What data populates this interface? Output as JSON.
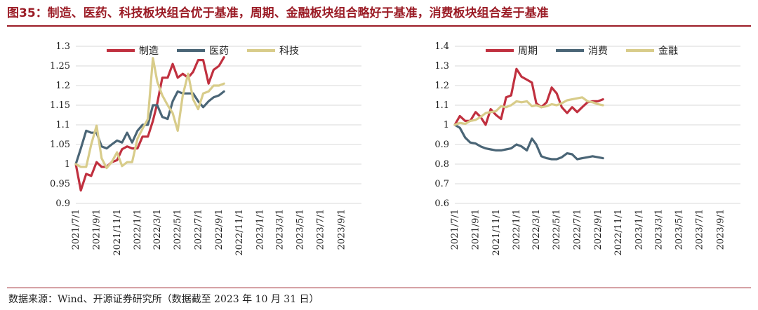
{
  "header": {
    "title": "图35：制造、医药、科技板块组合优于基准，周期、金融板块组合略好于基准，消费板块组合差于基准"
  },
  "footer": {
    "source": "数据来源：Wind、开源证券研究所（数据截至 2023 年 10 月 31 日）"
  },
  "chart_data": [
    {
      "type": "line",
      "title": "",
      "xlabel": "",
      "ylabel": "",
      "ylim": [
        0.9,
        1.3
      ],
      "yticks": [
        "1.3",
        "1.25",
        "1.2",
        "1.15",
        "1.1",
        "1.05",
        "1",
        "0.95",
        "0.9"
      ],
      "x_tick_labels": [
        "2021/7/1",
        "2021/9/1",
        "2021/11/1",
        "2022/1/1",
        "2022/3/1",
        "2022/5/1",
        "2022/7/1",
        "2022/9/1",
        "2022/11/1",
        "2023/1/1",
        "2023/3/1",
        "2023/5/1",
        "2023/7/1",
        "2023/9/1"
      ],
      "x_range": [
        "2021/7/1",
        "2023/10/31"
      ],
      "grid": true,
      "legend_position": "top",
      "series": [
        {
          "name": "制造",
          "color": "#c0303f",
          "points": [
            [
              "2021/7/1",
              1.0
            ],
            [
              "2021/7/16",
              0.933
            ],
            [
              "2021/8/1",
              0.975
            ],
            [
              "2021/8/16",
              0.97
            ],
            [
              "2021/9/1",
              1.005
            ],
            [
              "2021/9/16",
              0.993
            ],
            [
              "2021/10/1",
              0.993
            ],
            [
              "2021/10/16",
              1.005
            ],
            [
              "2021/11/1",
              1.01
            ],
            [
              "2021/11/16",
              1.038
            ],
            [
              "2021/12/1",
              1.045
            ],
            [
              "2021/12/16",
              1.04
            ],
            [
              "2022/1/1",
              1.04
            ],
            [
              "2022/1/16",
              1.07
            ],
            [
              "2022/2/1",
              1.07
            ],
            [
              "2022/2/16",
              1.11
            ],
            [
              "2022/3/1",
              1.155
            ],
            [
              "2022/3/16",
              1.22
            ],
            [
              "2022/4/1",
              1.22
            ],
            [
              "2022/4/16",
              1.255
            ],
            [
              "2022/5/1",
              1.22
            ],
            [
              "2022/5/16",
              1.23
            ],
            [
              "2022/6/1",
              1.22
            ],
            [
              "2022/6/16",
              1.235
            ],
            [
              "2022/7/1",
              1.265
            ],
            [
              "2022/7/16",
              1.265
            ],
            [
              "2022/8/1",
              1.205
            ],
            [
              "2022/8/16",
              1.24
            ],
            [
              "2022/9/1",
              1.25
            ],
            [
              "2022/9/16",
              1.272
            ]
          ]
        },
        {
          "name": "医药",
          "color": "#4a6576",
          "points": [
            [
              "2021/7/1",
              1.0
            ],
            [
              "2021/7/16",
              1.04
            ],
            [
              "2021/8/1",
              1.085
            ],
            [
              "2021/8/16",
              1.08
            ],
            [
              "2021/9/1",
              1.08
            ],
            [
              "2021/9/16",
              1.045
            ],
            [
              "2021/10/1",
              1.04
            ],
            [
              "2021/10/16",
              1.05
            ],
            [
              "2021/11/1",
              1.06
            ],
            [
              "2021/11/16",
              1.055
            ],
            [
              "2021/12/1",
              1.08
            ],
            [
              "2021/12/16",
              1.055
            ],
            [
              "2022/1/1",
              1.085
            ],
            [
              "2022/1/16",
              1.1
            ],
            [
              "2022/2/1",
              1.1
            ],
            [
              "2022/2/16",
              1.15
            ],
            [
              "2022/3/1",
              1.15
            ],
            [
              "2022/3/16",
              1.12
            ],
            [
              "2022/4/1",
              1.115
            ],
            [
              "2022/4/16",
              1.16
            ],
            [
              "2022/5/1",
              1.185
            ],
            [
              "2022/5/16",
              1.18
            ],
            [
              "2022/6/1",
              1.18
            ],
            [
              "2022/6/16",
              1.18
            ],
            [
              "2022/7/1",
              1.16
            ],
            [
              "2022/7/16",
              1.145
            ],
            [
              "2022/8/1",
              1.16
            ],
            [
              "2022/8/16",
              1.17
            ],
            [
              "2022/9/1",
              1.175
            ],
            [
              "2022/9/16",
              1.185
            ]
          ]
        },
        {
          "name": "科技",
          "color": "#d8cc8a",
          "points": [
            [
              "2021/7/1",
              1.0
            ],
            [
              "2021/7/16",
              0.993
            ],
            [
              "2021/8/1",
              0.993
            ],
            [
              "2021/8/16",
              1.05
            ],
            [
              "2021/9/1",
              1.098
            ],
            [
              "2021/9/16",
              1.015
            ],
            [
              "2021/10/1",
              0.99
            ],
            [
              "2021/10/16",
              1.005
            ],
            [
              "2021/11/1",
              1.03
            ],
            [
              "2021/11/16",
              0.995
            ],
            [
              "2021/12/1",
              1.005
            ],
            [
              "2021/12/16",
              1.005
            ],
            [
              "2022/1/1",
              1.065
            ],
            [
              "2022/1/16",
              1.09
            ],
            [
              "2022/2/1",
              1.115
            ],
            [
              "2022/2/16",
              1.27
            ],
            [
              "2022/3/1",
              1.21
            ],
            [
              "2022/3/16",
              1.175
            ],
            [
              "2022/4/1",
              1.15
            ],
            [
              "2022/4/16",
              1.13
            ],
            [
              "2022/5/1",
              1.085
            ],
            [
              "2022/5/16",
              1.175
            ],
            [
              "2022/6/1",
              1.23
            ],
            [
              "2022/6/16",
              1.165
            ],
            [
              "2022/7/1",
              1.14
            ],
            [
              "2022/7/16",
              1.18
            ],
            [
              "2022/8/1",
              1.185
            ],
            [
              "2022/8/16",
              1.2
            ],
            [
              "2022/9/1",
              1.2
            ],
            [
              "2022/9/16",
              1.205
            ]
          ]
        }
      ]
    },
    {
      "type": "line",
      "title": "",
      "xlabel": "",
      "ylabel": "",
      "ylim": [
        0.6,
        1.4
      ],
      "yticks": [
        "1.4",
        "1.3",
        "1.2",
        "1.1",
        "1",
        "0.9",
        "0.8",
        "0.7",
        "0.6"
      ],
      "x_tick_labels": [
        "2021/7/1",
        "2021/9/1",
        "2021/11/1",
        "2022/1/1",
        "2022/3/1",
        "2022/5/1",
        "2022/7/1",
        "2022/9/1",
        "2022/11/1",
        "2023/1/1",
        "2023/3/1",
        "2023/5/1",
        "2023/7/1",
        "2023/9/1"
      ],
      "x_range": [
        "2021/7/1",
        "2023/10/31"
      ],
      "grid": true,
      "legend_position": "top",
      "series": [
        {
          "name": "周期",
          "color": "#c0303f",
          "points": [
            [
              "2021/7/1",
              1.0
            ],
            [
              "2021/7/16",
              1.045
            ],
            [
              "2021/8/1",
              1.02
            ],
            [
              "2021/8/16",
              1.02
            ],
            [
              "2021/9/1",
              1.065
            ],
            [
              "2021/9/16",
              1.04
            ],
            [
              "2021/10/1",
              1.0
            ],
            [
              "2021/10/16",
              1.08
            ],
            [
              "2021/11/1",
              1.05
            ],
            [
              "2021/11/16",
              1.03
            ],
            [
              "2021/12/1",
              1.14
            ],
            [
              "2021/12/16",
              1.15
            ],
            [
              "2022/1/1",
              1.285
            ],
            [
              "2022/1/16",
              1.245
            ],
            [
              "2022/2/1",
              1.23
            ],
            [
              "2022/2/16",
              1.215
            ],
            [
              "2022/3/1",
              1.11
            ],
            [
              "2022/3/16",
              1.09
            ],
            [
              "2022/4/1",
              1.115
            ],
            [
              "2022/4/16",
              1.19
            ],
            [
              "2022/5/1",
              1.16
            ],
            [
              "2022/5/16",
              1.09
            ],
            [
              "2022/6/1",
              1.06
            ],
            [
              "2022/6/16",
              1.09
            ],
            [
              "2022/7/1",
              1.065
            ],
            [
              "2022/7/16",
              1.09
            ],
            [
              "2022/8/1",
              1.115
            ],
            [
              "2022/8/16",
              1.12
            ],
            [
              "2022/9/1",
              1.12
            ],
            [
              "2022/9/16",
              1.13
            ]
          ]
        },
        {
          "name": "消费",
          "color": "#4a6576",
          "points": [
            [
              "2021/7/1",
              1.0
            ],
            [
              "2021/7/16",
              0.985
            ],
            [
              "2021/8/1",
              0.935
            ],
            [
              "2021/8/16",
              0.91
            ],
            [
              "2021/9/1",
              0.905
            ],
            [
              "2021/9/16",
              0.89
            ],
            [
              "2021/10/1",
              0.88
            ],
            [
              "2021/10/16",
              0.875
            ],
            [
              "2021/11/1",
              0.87
            ],
            [
              "2021/11/16",
              0.87
            ],
            [
              "2021/12/1",
              0.875
            ],
            [
              "2021/12/16",
              0.88
            ],
            [
              "2022/1/1",
              0.9
            ],
            [
              "2022/1/16",
              0.89
            ],
            [
              "2022/2/1",
              0.87
            ],
            [
              "2022/2/16",
              0.93
            ],
            [
              "2022/3/1",
              0.9
            ],
            [
              "2022/3/16",
              0.84
            ],
            [
              "2022/4/1",
              0.83
            ],
            [
              "2022/4/16",
              0.825
            ],
            [
              "2022/5/1",
              0.825
            ],
            [
              "2022/5/16",
              0.835
            ],
            [
              "2022/6/1",
              0.855
            ],
            [
              "2022/6/16",
              0.85
            ],
            [
              "2022/7/1",
              0.825
            ],
            [
              "2022/7/16",
              0.83
            ],
            [
              "2022/8/1",
              0.835
            ],
            [
              "2022/8/16",
              0.84
            ],
            [
              "2022/9/1",
              0.835
            ],
            [
              "2022/9/16",
              0.83
            ]
          ]
        },
        {
          "name": "金融",
          "color": "#d8cc8a",
          "points": [
            [
              "2021/7/1",
              1.0
            ],
            [
              "2021/7/16",
              1.01
            ],
            [
              "2021/8/1",
              1.005
            ],
            [
              "2021/8/16",
              1.02
            ],
            [
              "2021/9/1",
              1.025
            ],
            [
              "2021/9/16",
              1.04
            ],
            [
              "2021/10/1",
              1.06
            ],
            [
              "2021/10/16",
              1.065
            ],
            [
              "2021/11/1",
              1.07
            ],
            [
              "2021/11/16",
              1.095
            ],
            [
              "2021/12/1",
              1.09
            ],
            [
              "2021/12/16",
              1.1
            ],
            [
              "2022/1/1",
              1.12
            ],
            [
              "2022/1/16",
              1.115
            ],
            [
              "2022/2/1",
              1.12
            ],
            [
              "2022/2/16",
              1.095
            ],
            [
              "2022/3/1",
              1.1
            ],
            [
              "2022/3/16",
              1.09
            ],
            [
              "2022/4/1",
              1.095
            ],
            [
              "2022/4/16",
              1.105
            ],
            [
              "2022/5/1",
              1.1
            ],
            [
              "2022/5/16",
              1.11
            ],
            [
              "2022/6/1",
              1.125
            ],
            [
              "2022/6/16",
              1.13
            ],
            [
              "2022/7/1",
              1.135
            ],
            [
              "2022/7/16",
              1.14
            ],
            [
              "2022/8/1",
              1.12
            ],
            [
              "2022/8/16",
              1.115
            ],
            [
              "2022/9/1",
              1.105
            ],
            [
              "2022/9/16",
              1.1
            ]
          ]
        }
      ]
    }
  ]
}
